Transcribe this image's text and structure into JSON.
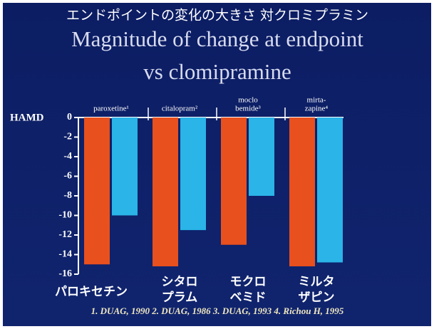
{
  "chart_data": {
    "type": "bar",
    "title_ja": "エンドポイントの変化の大きさ 対クロミプラミン",
    "title": [
      "Magnitude of change at endpoint",
      "vs clomipramine"
    ],
    "ylabel": "HAMD",
    "categories": [
      [
        "paroxetine¹"
      ],
      [
        "citalopram²"
      ],
      [
        "moclo",
        "bemide³"
      ],
      [
        "mirta-",
        "zapine⁴"
      ]
    ],
    "category_labels_ja": [
      [
        "パロキセチン"
      ],
      [
        "シタロ",
        "プラム"
      ],
      [
        "モクロ",
        "ベミド"
      ],
      [
        "ミルタ",
        "ザピン"
      ]
    ],
    "series": [
      {
        "color": "#e8501e",
        "values": [
          -15,
          -15.2,
          -13,
          -15.2
        ]
      },
      {
        "color": "#2ab4e8",
        "values": [
          -10,
          -11.5,
          -8,
          -14.8
        ]
      }
    ],
    "ylim": [
      -16,
      0
    ],
    "yticks": [
      0,
      -2,
      -4,
      -6,
      -8,
      -10,
      -12,
      -14,
      -16
    ],
    "footnote": "1. DUAG, 1990  2. DUAG, 1986  3. DUAG, 1993  4. Richou H, 1995"
  }
}
